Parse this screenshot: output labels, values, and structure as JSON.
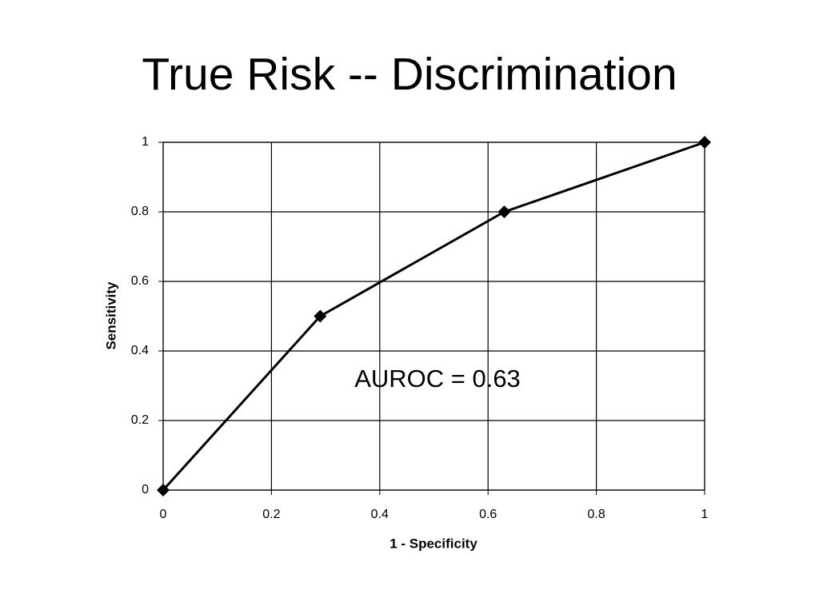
{
  "chart_data": {
    "type": "line",
    "title": "True Risk -- Discrimination",
    "x_label": "1 - Specificity",
    "y_label": "Sensitivity",
    "annotation": "AUROC = 0.63",
    "x": [
      0,
      0.29,
      0.63,
      1
    ],
    "values": [
      0,
      0.5,
      0.8,
      1
    ],
    "color": "#000000",
    "xlim": [
      0,
      1
    ],
    "xticks": [
      0,
      0.2,
      0.4,
      0.6,
      0.8,
      1
    ],
    "ylim": [
      0,
      1
    ],
    "yticks": [
      0,
      0.2,
      0.4,
      0.6,
      0.8,
      1
    ],
    "grid": true
  }
}
